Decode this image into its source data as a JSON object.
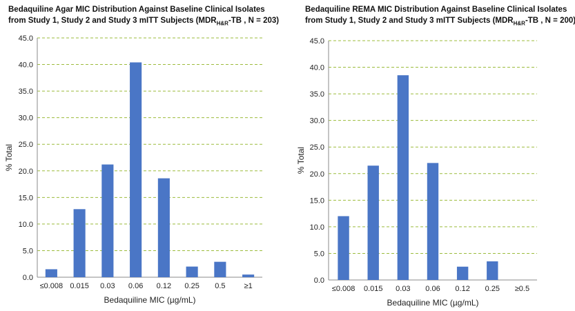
{
  "colors": {
    "bar": "#4a76c6",
    "grid": "#9bbb3a",
    "axis": "#888888"
  },
  "chart_data": [
    {
      "type": "bar",
      "title_line1": "Bedaquiline Agar MIC Distribution Against  Baseline Clinical  Isolates",
      "title_line2_pre": "from Study 1, Study 2 and Study 3 mITT Subjects (MDR",
      "title_sub": "H&R",
      "title_line2_post": "-TB , N = 203)",
      "xlabel": "Bedaquiline MIC (µg/mL)",
      "ylabel": "% Total",
      "ylim": [
        0,
        45
      ],
      "yticks": [
        "0.0",
        "5.0",
        "10.0",
        "15.0",
        "20.0",
        "25.0",
        "30.0",
        "35.0",
        "40.0",
        "45.0"
      ],
      "categories": [
        "≤0.008",
        "0.015",
        "0.03",
        "0.06",
        "0.12",
        "0.25",
        "0.5",
        "≥1"
      ],
      "values": [
        1.5,
        12.8,
        21.2,
        40.4,
        18.6,
        2.0,
        2.9,
        0.5
      ],
      "grid": true
    },
    {
      "type": "bar",
      "title_line1": "Bedaquiline REMA MIC Distribution Against  Baseline Clinical  Isolates",
      "title_line2_pre": "from Study 1, Study 2 and Study 3 mITT Subjects (MDR",
      "title_sub": "H&R",
      "title_line2_post": "-TB , N = 200)",
      "xlabel": "Bedaquiline MIC (µg/mL)",
      "ylabel": "% Total",
      "ylim": [
        0,
        45
      ],
      "yticks": [
        "0.0",
        "5.0",
        "10.0",
        "15.0",
        "20.0",
        "25.0",
        "30.0",
        "35.0",
        "40.0",
        "45.0"
      ],
      "categories": [
        "≤0.008",
        "0.015",
        "0.03",
        "0.06",
        "0.12",
        "0.25",
        "≥0.5"
      ],
      "values": [
        12.0,
        21.5,
        38.5,
        22.0,
        2.5,
        3.5,
        0.0
      ],
      "grid": true
    }
  ]
}
